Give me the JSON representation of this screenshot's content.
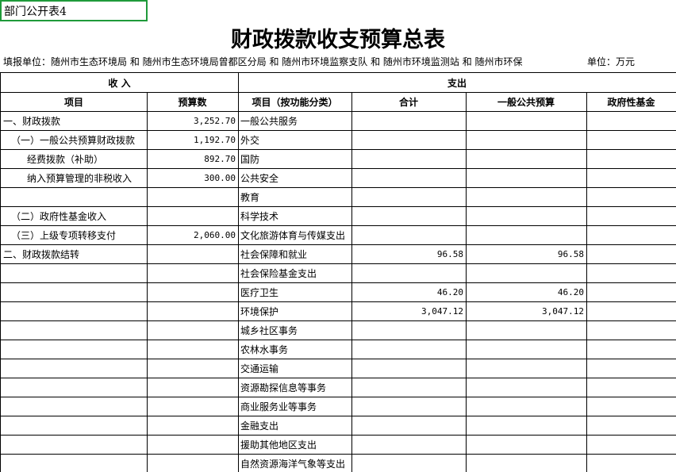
{
  "sheet_label": "部门公开表4",
  "title": "财政拨款收支预算总表",
  "subtitle": "填报单位：随州市生态环境局 和 随州市生态环境局曾都区分局 和 随州市环境监察支队 和 随州市环境监测站 和 随州市环保",
  "unit": "单位：万元",
  "table": {
    "group_headers": [
      "收          入",
      "支出"
    ],
    "headers": [
      "项目",
      "预算数",
      "项目（按功能分类）",
      "合计",
      "一般公共预算",
      "政府性基金"
    ],
    "rows": [
      [
        "一、财政拨款",
        "3,252.70",
        "一般公共服务",
        null,
        null,
        null
      ],
      [
        "（一）一般公共预算财政拨款",
        "1,192.70",
        "外交",
        null,
        null,
        null
      ],
      [
        "经费拨款（补助）",
        "892.70",
        "国防",
        null,
        null,
        null
      ],
      [
        "纳入预算管理的非税收入",
        "300.00",
        "公共安全",
        null,
        null,
        null
      ],
      [
        null,
        null,
        "教育",
        null,
        null,
        null
      ],
      [
        "（二）政府性基金收入",
        null,
        "科学技术",
        null,
        null,
        null
      ],
      [
        "（三）上级专项转移支付",
        "2,060.00",
        "文化旅游体育与传媒支出",
        null,
        null,
        null
      ],
      [
        "二、财政拨款结转",
        null,
        "社会保障和就业",
        "96.58",
        "96.58",
        null
      ],
      [
        null,
        null,
        "社会保险基金支出",
        null,
        null,
        null
      ],
      [
        null,
        null,
        "医疗卫生",
        "46.20",
        "46.20",
        null
      ],
      [
        null,
        null,
        "环境保护",
        "3,047.12",
        "3,047.12",
        null
      ],
      [
        null,
        null,
        "城乡社区事务",
        null,
        null,
        null
      ],
      [
        null,
        null,
        "农林水事务",
        null,
        null,
        null
      ],
      [
        null,
        null,
        "交通运输",
        null,
        null,
        null
      ],
      [
        null,
        null,
        "资源勘探信息等事务",
        null,
        null,
        null
      ],
      [
        null,
        null,
        "商业服务业等事务",
        null,
        null,
        null
      ],
      [
        null,
        null,
        "金融支出",
        null,
        null,
        null
      ],
      [
        null,
        null,
        "援助其他地区支出",
        null,
        null,
        null
      ],
      [
        null,
        null,
        "自然资源海洋气象等支出",
        null,
        null,
        null
      ]
    ]
  }
}
